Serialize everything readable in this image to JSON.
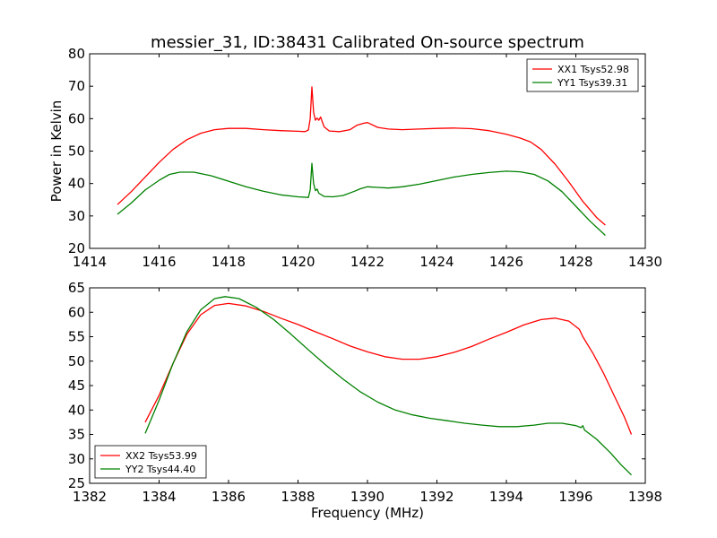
{
  "figure": {
    "title": "messier_31, ID:38431 Calibrated On-source spectrum"
  },
  "chart_data": [
    {
      "type": "line",
      "title": "messier_31, ID:38431 Calibrated On-source spectrum",
      "xlabel": "",
      "ylabel": "Power in Kelvin",
      "xlim": [
        1414,
        1430
      ],
      "ylim": [
        20,
        80
      ],
      "xticks": [
        "1414",
        "1416",
        "1418",
        "1420",
        "1422",
        "1424",
        "1426",
        "1428",
        "1430"
      ],
      "yticks": [
        "20",
        "30",
        "40",
        "50",
        "60",
        "70",
        "80"
      ],
      "legend_position": "top-right",
      "grid": false,
      "series": [
        {
          "name": "XX1 Tsys52.98",
          "color": "#ff0000",
          "points": [
            [
              1414.8,
              33.5
            ],
            [
              1415.2,
              37.5
            ],
            [
              1415.6,
              42.0
            ],
            [
              1416.0,
              46.5
            ],
            [
              1416.4,
              50.5
            ],
            [
              1416.8,
              53.5
            ],
            [
              1417.2,
              55.5
            ],
            [
              1417.6,
              56.6
            ],
            [
              1418.0,
              57.0
            ],
            [
              1418.5,
              57.0
            ],
            [
              1419.0,
              56.6
            ],
            [
              1419.5,
              56.3
            ],
            [
              1420.0,
              56.1
            ],
            [
              1420.2,
              56.0
            ],
            [
              1420.3,
              56.5
            ],
            [
              1420.35,
              60.0
            ],
            [
              1420.4,
              69.8
            ],
            [
              1420.45,
              62.0
            ],
            [
              1420.5,
              59.5
            ],
            [
              1420.55,
              60.2
            ],
            [
              1420.6,
              59.5
            ],
            [
              1420.65,
              60.5
            ],
            [
              1420.75,
              57.5
            ],
            [
              1420.9,
              56.2
            ],
            [
              1421.2,
              56.0
            ],
            [
              1421.5,
              56.6
            ],
            [
              1421.7,
              58.0
            ],
            [
              1421.9,
              58.6
            ],
            [
              1422.0,
              58.8
            ],
            [
              1422.3,
              57.3
            ],
            [
              1422.6,
              56.8
            ],
            [
              1423.0,
              56.6
            ],
            [
              1423.5,
              56.8
            ],
            [
              1424.0,
              57.0
            ],
            [
              1424.5,
              57.1
            ],
            [
              1425.0,
              56.9
            ],
            [
              1425.5,
              56.3
            ],
            [
              1426.0,
              55.2
            ],
            [
              1426.4,
              54.0
            ],
            [
              1426.7,
              52.8
            ],
            [
              1427.0,
              50.5
            ],
            [
              1427.4,
              46.0
            ],
            [
              1427.8,
              40.5
            ],
            [
              1428.2,
              34.5
            ],
            [
              1428.6,
              29.5
            ],
            [
              1428.85,
              27.2
            ]
          ]
        },
        {
          "name": "YY1 Tsys39.31",
          "color": "#008000",
          "points": [
            [
              1414.8,
              30.5
            ],
            [
              1415.2,
              34.0
            ],
            [
              1415.6,
              38.0
            ],
            [
              1416.0,
              41.0
            ],
            [
              1416.3,
              42.8
            ],
            [
              1416.6,
              43.5
            ],
            [
              1417.0,
              43.5
            ],
            [
              1417.5,
              42.4
            ],
            [
              1418.0,
              40.7
            ],
            [
              1418.5,
              39.0
            ],
            [
              1419.0,
              37.6
            ],
            [
              1419.5,
              36.5
            ],
            [
              1420.0,
              35.9
            ],
            [
              1420.3,
              35.7
            ],
            [
              1420.35,
              38.0
            ],
            [
              1420.4,
              46.2
            ],
            [
              1420.45,
              40.0
            ],
            [
              1420.5,
              37.8
            ],
            [
              1420.55,
              38.3
            ],
            [
              1420.6,
              37.0
            ],
            [
              1420.75,
              36.0
            ],
            [
              1421.0,
              35.9
            ],
            [
              1421.3,
              36.3
            ],
            [
              1421.6,
              37.5
            ],
            [
              1421.8,
              38.4
            ],
            [
              1422.0,
              39.0
            ],
            [
              1422.3,
              38.8
            ],
            [
              1422.6,
              38.6
            ],
            [
              1423.0,
              39.0
            ],
            [
              1423.5,
              39.8
            ],
            [
              1424.0,
              40.9
            ],
            [
              1424.5,
              42.0
            ],
            [
              1425.0,
              42.8
            ],
            [
              1425.5,
              43.4
            ],
            [
              1426.0,
              43.8
            ],
            [
              1426.4,
              43.6
            ],
            [
              1426.8,
              42.8
            ],
            [
              1427.2,
              40.8
            ],
            [
              1427.6,
              37.5
            ],
            [
              1428.0,
              33.0
            ],
            [
              1428.4,
              28.5
            ],
            [
              1428.85,
              24.0
            ]
          ]
        }
      ]
    },
    {
      "type": "line",
      "title": "",
      "xlabel": "Frequency (MHz)",
      "ylabel": "",
      "xlim": [
        1382,
        1398
      ],
      "ylim": [
        25,
        65
      ],
      "xticks": [
        "1382",
        "1384",
        "1386",
        "1388",
        "1390",
        "1392",
        "1394",
        "1396",
        "1398"
      ],
      "yticks": [
        "25",
        "30",
        "35",
        "40",
        "45",
        "50",
        "55",
        "60",
        "65"
      ],
      "legend_position": "bottom-left",
      "grid": false,
      "series": [
        {
          "name": "XX2 Tsys53.99",
          "color": "#ff0000",
          "points": [
            [
              1383.6,
              37.5
            ],
            [
              1384.0,
              43.0
            ],
            [
              1384.4,
              49.5
            ],
            [
              1384.8,
              55.5
            ],
            [
              1385.2,
              59.5
            ],
            [
              1385.6,
              61.4
            ],
            [
              1386.0,
              61.8
            ],
            [
              1386.5,
              61.3
            ],
            [
              1387.0,
              60.2
            ],
            [
              1387.5,
              58.8
            ],
            [
              1388.0,
              57.5
            ],
            [
              1388.5,
              56.0
            ],
            [
              1389.0,
              54.6
            ],
            [
              1389.5,
              53.1
            ],
            [
              1390.0,
              51.9
            ],
            [
              1390.5,
              50.9
            ],
            [
              1391.0,
              50.4
            ],
            [
              1391.5,
              50.4
            ],
            [
              1392.0,
              50.9
            ],
            [
              1392.5,
              51.8
            ],
            [
              1393.0,
              53.0
            ],
            [
              1393.5,
              54.5
            ],
            [
              1394.0,
              55.9
            ],
            [
              1394.5,
              57.4
            ],
            [
              1395.0,
              58.5
            ],
            [
              1395.4,
              58.8
            ],
            [
              1395.8,
              58.2
            ],
            [
              1396.1,
              56.5
            ],
            [
              1396.2,
              55.0
            ],
            [
              1396.5,
              51.5
            ],
            [
              1396.8,
              47.5
            ],
            [
              1397.1,
              43.0
            ],
            [
              1397.4,
              38.5
            ],
            [
              1397.6,
              35.0
            ]
          ]
        },
        {
          "name": "YY2 Tsys44.40",
          "color": "#008000",
          "points": [
            [
              1383.6,
              35.2
            ],
            [
              1384.0,
              42.0
            ],
            [
              1384.4,
              49.5
            ],
            [
              1384.8,
              56.0
            ],
            [
              1385.2,
              60.5
            ],
            [
              1385.6,
              62.8
            ],
            [
              1385.9,
              63.2
            ],
            [
              1386.3,
              62.8
            ],
            [
              1386.8,
              61.0
            ],
            [
              1387.3,
              58.5
            ],
            [
              1387.8,
              55.5
            ],
            [
              1388.3,
              52.3
            ],
            [
              1388.8,
              49.2
            ],
            [
              1389.3,
              46.3
            ],
            [
              1389.8,
              43.7
            ],
            [
              1390.3,
              41.6
            ],
            [
              1390.8,
              40.0
            ],
            [
              1391.3,
              39.0
            ],
            [
              1391.8,
              38.3
            ],
            [
              1392.3,
              37.8
            ],
            [
              1392.8,
              37.3
            ],
            [
              1393.3,
              36.9
            ],
            [
              1393.8,
              36.6
            ],
            [
              1394.3,
              36.6
            ],
            [
              1394.8,
              36.9
            ],
            [
              1395.2,
              37.3
            ],
            [
              1395.6,
              37.3
            ],
            [
              1396.0,
              36.8
            ],
            [
              1396.15,
              36.4
            ],
            [
              1396.2,
              36.8
            ],
            [
              1396.25,
              35.9
            ],
            [
              1396.6,
              34.0
            ],
            [
              1397.0,
              31.2
            ],
            [
              1397.3,
              28.8
            ],
            [
              1397.6,
              26.7
            ]
          ]
        }
      ]
    }
  ]
}
